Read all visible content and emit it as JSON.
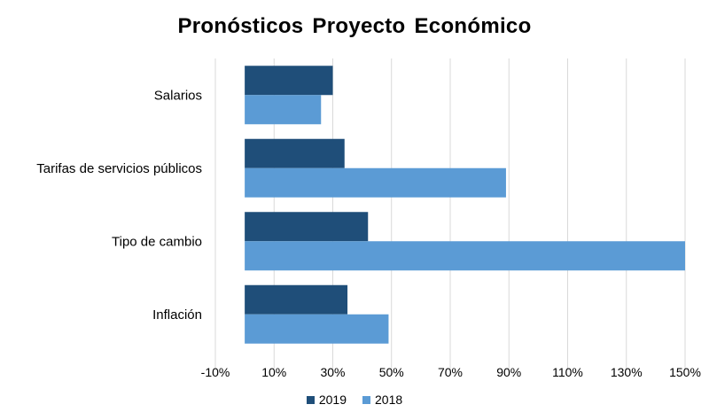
{
  "chart_data": {
    "type": "bar",
    "orientation": "horizontal",
    "title": "Pronósticos  Proyecto  Económico",
    "xlabel": "",
    "ylabel": "",
    "categories": [
      "Salarios",
      "Tarifas de servicios públicos",
      "Tipo de cambio",
      "Inflación"
    ],
    "series": [
      {
        "name": "2019",
        "color": "#1f4e79",
        "values": [
          30,
          34,
          42,
          35
        ]
      },
      {
        "name": "2018",
        "color": "#5b9bd5",
        "values": [
          26,
          89,
          150,
          49
        ]
      }
    ],
    "xlim": [
      -10,
      150
    ],
    "xticks": [
      -10,
      10,
      30,
      50,
      70,
      90,
      110,
      130,
      150
    ],
    "xtick_labels": [
      "-10%",
      "10%",
      "30%",
      "50%",
      "70%",
      "90%",
      "110%",
      "130%",
      "150%"
    ],
    "grid": "vertical",
    "legend_position": "bottom"
  }
}
